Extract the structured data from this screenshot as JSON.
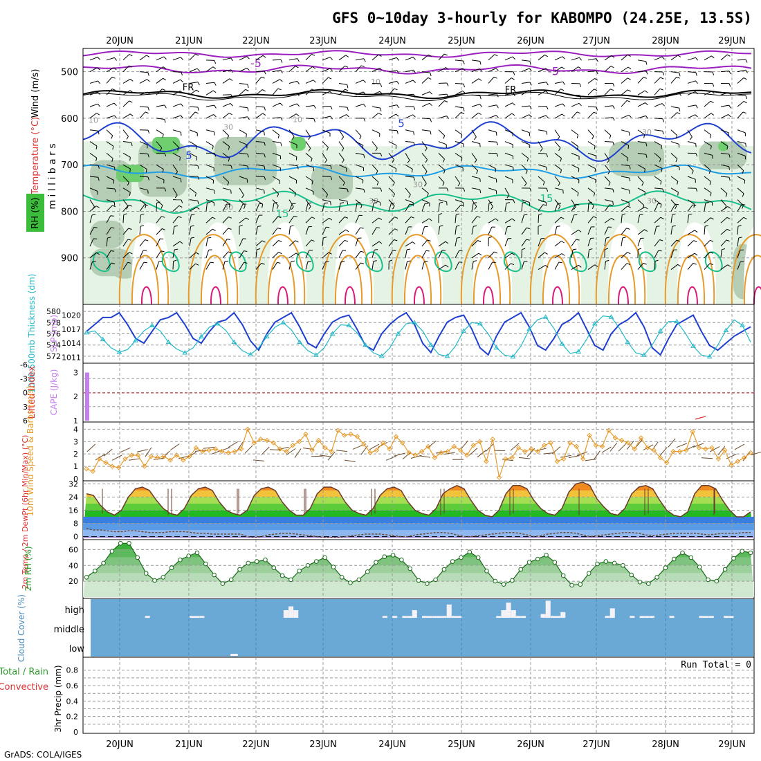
{
  "title": "GFS 0~10day 3-hourly for KABOMPO (24.25E, 13.5S)",
  "footer": "GrADS: COLA/IGES",
  "date_labels": [
    "20JUN",
    "21JUN",
    "22JUN",
    "23JUN",
    "24JUN",
    "25JUN",
    "26JUN",
    "27JUN",
    "28JUN",
    "29JUN"
  ],
  "colors": {
    "temp_purple": "#9b1fc0",
    "temp_black": "#000000",
    "temp_blue": "#1e3fd0",
    "temp_lightblue": "#1e9ee6",
    "temp_green": "#17c08a",
    "temp_orange": "#e69a2a",
    "temp_magenta": "#d8197a",
    "slp": "#1e3fd0",
    "thickness": "#22b8c8",
    "cape": "#c57ef0",
    "wind_speed": "#e69a2a",
    "rh_fill": "#3bbd3b",
    "cloud_bg": "#6aa8d6",
    "cloud_bars": "#f4f2f6"
  },
  "chart_data": [
    {
      "type": "heatmap",
      "panel": "upper-air",
      "ylabel": "m i l l i b a r s",
      "side_labels": {
        "wind": "Wind (m/s)",
        "temperature": "Temperature (°C)",
        "rh": "RH (%)"
      },
      "yticks": [
        500,
        600,
        700,
        800,
        900
      ],
      "ylim": [
        1000,
        450
      ],
      "contour_labels": [
        "-5",
        "-5",
        "FR",
        "FR",
        "10",
        "10",
        "10",
        "30",
        "30",
        "5",
        "5",
        "30",
        "30",
        "30",
        "15",
        "15",
        "30"
      ]
    },
    {
      "type": "line",
      "panel": "slp-thickness",
      "ylabel_left": "1000-500mb Thickness (dm)",
      "ylabel_right": "SLP (mb)",
      "yticks_left": [
        572,
        574,
        576,
        578,
        580
      ],
      "yticks_right": [
        1011,
        1014,
        1017,
        1020
      ],
      "series": [
        {
          "name": "SLP (mb)",
          "values": [
            1016.5,
            1018,
            1019.5,
            1019.5,
            1020.5,
            1018,
            1015,
            1014,
            1016.5,
            1019,
            1019.5,
            1020.5,
            1018,
            1015,
            1014,
            1016.5,
            1018.5,
            1019,
            1020.5,
            1018,
            1014.5,
            1012.5,
            1016,
            1018.5,
            1019.5,
            1020.5,
            1017.5,
            1014,
            1013,
            1016,
            1018.5,
            1019.5,
            1020,
            1017,
            1013.5,
            1012.5,
            1016,
            1018,
            1019.5,
            1020.5,
            1018,
            1014,
            1012,
            1015.5,
            1018.5,
            1019.5,
            1020,
            1017,
            1013,
            1011.5,
            1015.5,
            1018.5,
            1019.5,
            1020.5,
            1017.5,
            1013.5,
            1012.5,
            1015,
            1018,
            1019,
            1020.5,
            1017,
            1013.5,
            1012.5,
            1016,
            1018,
            1019,
            1020.5,
            1017.5,
            1013,
            1011.5,
            1015,
            1018,
            1019,
            1020,
            1016.5,
            1013.5,
            1012.5,
            1014,
            1015.5,
            1016.5,
            1017.5
          ]
        },
        {
          "name": "Thickness (dm)",
          "values": [
            576.2,
            576.5,
            575,
            573.5,
            572.7,
            573.2,
            574.8,
            576.5,
            577.5,
            576.5,
            574.5,
            573.3,
            572.6,
            573.5,
            575.5,
            577.2,
            577.8,
            576.6,
            574.5,
            573,
            572.3,
            573.5,
            575.5,
            577.2,
            578,
            576.7,
            574.5,
            573,
            572.2,
            573.5,
            576,
            577.6,
            577.5,
            576.2,
            574,
            572.6,
            572,
            573.5,
            576,
            577.8,
            578,
            576.5,
            574,
            572.3,
            572,
            573.8,
            576.5,
            578,
            577.8,
            576,
            573.5,
            572.2,
            571.9,
            573.8,
            576.8,
            578.5,
            579,
            577,
            574.2,
            572.5,
            572.8,
            575,
            577.8,
            579.2,
            579,
            577,
            574.5,
            572.6,
            572.2,
            574,
            576.5,
            578.2,
            578.2,
            576.2,
            573.8,
            572.2,
            571.9,
            574,
            576.6,
            578.5,
            577.5,
            574.5
          ]
        }
      ]
    },
    {
      "type": "bar",
      "panel": "cape-lifted-index",
      "ylabel_left": "Lifted Index",
      "ylabel_right": "CAPE (J/kg)",
      "yticks_left": [
        "-6",
        "-3",
        "0",
        "3",
        "6"
      ],
      "yticks_right": [
        "3",
        "2",
        "1"
      ],
      "cape_values": [
        3
      ]
    },
    {
      "type": "line",
      "panel": "10m-wind",
      "ylabel": "10m Wind Speed & Barbs (m/s)",
      "yticks": [
        0,
        1,
        2,
        3,
        4
      ],
      "ylim": [
        0,
        4.3
      ],
      "series": [
        {
          "name": "10m Wind Speed",
          "values": [
            0.8,
            0.6,
            1.6,
            1.3,
            1,
            0.9,
            1.6,
            1.9,
            1.9,
            1,
            1.8,
            1.7,
            1.8,
            1.5,
            1.9,
            1.5,
            1.8,
            2.5,
            2.2,
            2.3,
            2.4,
            2.2,
            2.1,
            2.2,
            2.4,
            4,
            2.9,
            3.2,
            3.1,
            2.9,
            2.4,
            2.2,
            2.7,
            3,
            3.6,
            2.3,
            3.1,
            2.5,
            2.2,
            3.9,
            3.5,
            3.6,
            3.4,
            2.8,
            2.1,
            2.3,
            2.9,
            2.4,
            3.4,
            2.9,
            2.1,
            1.9,
            2.2,
            2.6,
            1.7,
            2.1,
            2.2,
            2.6,
            2.3,
            1.9,
            2.7,
            3,
            1.4,
            3.2,
            0.1,
            1.6,
            1.7,
            2.5,
            2.2,
            2.4,
            2.2,
            2.7,
            2.9,
            1.4,
            1.6,
            2.9,
            2.6,
            1.6,
            3.5,
            2.7,
            2.6,
            3.9,
            3.3,
            3.1,
            2.9,
            2.4,
            3.3,
            2.5,
            2.3,
            1.7,
            1.3,
            2.2,
            2.2,
            2.3,
            3.8,
            2.5,
            2.4,
            2.5,
            1.6,
            2.3,
            1.1,
            1.4,
            1.7,
            2.1
          ]
        }
      ]
    },
    {
      "type": "area",
      "panel": "2m-temp",
      "ylabel": "2m Temp / 2m DewPt (6hr Min/Max) (°C)",
      "yticks": [
        0,
        8,
        16,
        24,
        32
      ],
      "ylim": [
        -1,
        33
      ],
      "series": [
        {
          "name": "2m Temp",
          "values": [
            26,
            25,
            19,
            15,
            13,
            16,
            24,
            29,
            30,
            28,
            22,
            17,
            14,
            13,
            17,
            25,
            29,
            30,
            28,
            21,
            16,
            14,
            13,
            16,
            25,
            29,
            30,
            28,
            21,
            16,
            13,
            13,
            17,
            26,
            30,
            30,
            28,
            21,
            16,
            14,
            13,
            17,
            25,
            29,
            30,
            28,
            21,
            16,
            14,
            13,
            17,
            26,
            29,
            31,
            29,
            22,
            16,
            13,
            12,
            16,
            26,
            31,
            31,
            29,
            22,
            17,
            14,
            13,
            17,
            27,
            32,
            33,
            31,
            23,
            18,
            14,
            13,
            17,
            26,
            30,
            31,
            29,
            22,
            16,
            13,
            12,
            15,
            26,
            31,
            31,
            29,
            22,
            16,
            12,
            12,
            15
          ]
        },
        {
          "name": "2m DewPt",
          "values": [
            5,
            4,
            4,
            3.5,
            3,
            3,
            3.5,
            3.5,
            3,
            2.5,
            2.5,
            2.5,
            3,
            3,
            3,
            2.5,
            2,
            2,
            1.5,
            1.5,
            1.5,
            1.5,
            1.5,
            0,
            -0.5,
            0,
            1,
            1.5,
            2,
            2,
            1.5,
            1,
            0.5,
            0,
            -0.5,
            -0.5,
            -0.5,
            0,
            0.5,
            1,
            1.5,
            1.5,
            1.5,
            1,
            0.5,
            0,
            0,
            1,
            1.5,
            2,
            2.5,
            2.5,
            2,
            1,
            0,
            0,
            0.5,
            1,
            1.5,
            2,
            2.5,
            2.5,
            2,
            1,
            0,
            0.5,
            1.5,
            2,
            2.5,
            2.5,
            2,
            1,
            0,
            0.5,
            1,
            1.5,
            2,
            2.5,
            2.5,
            2,
            1,
            0.5,
            1,
            1.5,
            2,
            2,
            2,
            2,
            1.5,
            1,
            1.5,
            2,
            2,
            2,
            2.5,
            2.5
          ]
        }
      ]
    },
    {
      "type": "area",
      "panel": "2m-rh",
      "ylabel": "2m RH (%)",
      "yticks": [
        20,
        40,
        60
      ],
      "ylim": [
        0,
        70
      ],
      "series": [
        {
          "name": "2m RH",
          "values": [
            25,
            33,
            43,
            58,
            68,
            68,
            50,
            30,
            21,
            25,
            37,
            47,
            52,
            56,
            42,
            28,
            17,
            22,
            35,
            43,
            45,
            47,
            37,
            27,
            22,
            33,
            40,
            45,
            50,
            38,
            25,
            18,
            22,
            32,
            44,
            51,
            53,
            47,
            36,
            21,
            17,
            22,
            35,
            45,
            50,
            57,
            50,
            33,
            20,
            16,
            21,
            35,
            44,
            48,
            53,
            44,
            27,
            15,
            16,
            30,
            42,
            45,
            43,
            40,
            28,
            19,
            17,
            25,
            37,
            48,
            56,
            50,
            38,
            22,
            20,
            35,
            49,
            58,
            56
          ]
        }
      ]
    },
    {
      "type": "bar",
      "panel": "cloud-cover",
      "ylabel": "Cloud Cover (%)",
      "yticks": [
        "high",
        "middle",
        "low"
      ],
      "high_cloud_pct": [
        0,
        0,
        0,
        0,
        0,
        0,
        0,
        0,
        0,
        0,
        0,
        5,
        0,
        0,
        0,
        0,
        0,
        0,
        0,
        0,
        5,
        5,
        5,
        0,
        0,
        0,
        0,
        0,
        0,
        0,
        0,
        0,
        0,
        0,
        0,
        0,
        0,
        0,
        0,
        20,
        30,
        20,
        0,
        0,
        0,
        0,
        0,
        0,
        0,
        0,
        0,
        0,
        0,
        0,
        0,
        0,
        0,
        0,
        0,
        5,
        0,
        5,
        0,
        5,
        5,
        20,
        0,
        5,
        5,
        5,
        5,
        5,
        35,
        5,
        5,
        0,
        0,
        0,
        0,
        0,
        0,
        0,
        5,
        20,
        40,
        20,
        5,
        5,
        0,
        0,
        0,
        10,
        45,
        5,
        5,
        15,
        0,
        0,
        0,
        0,
        0,
        0,
        0,
        0,
        5,
        25,
        0,
        0,
        0,
        5,
        0,
        5,
        5,
        5,
        0,
        0,
        0,
        5,
        0,
        0,
        0,
        0,
        0,
        5,
        5,
        5,
        0,
        0,
        5,
        5,
        0,
        0,
        0,
        0
      ],
      "low_cloud_pct": [
        0,
        0,
        0,
        0,
        0,
        0,
        0,
        0,
        0,
        0,
        0,
        0,
        0,
        0,
        0,
        0,
        0,
        0,
        0,
        10,
        0,
        0,
        0,
        0,
        0,
        0,
        0,
        0,
        0,
        0,
        0,
        0,
        0,
        0,
        0,
        0,
        0,
        0,
        0,
        0,
        0,
        0,
        0,
        0,
        0,
        0,
        0,
        0,
        0,
        0,
        0,
        0,
        0,
        0,
        0,
        0,
        0,
        0,
        0,
        0,
        0,
        0,
        0,
        0,
        0,
        0,
        0,
        0,
        0,
        0,
        0,
        0,
        0,
        0,
        0,
        0,
        0,
        0,
        0,
        0,
        0,
        0,
        0,
        0,
        0,
        0,
        0,
        0,
        0,
        0
      ]
    },
    {
      "type": "bar",
      "panel": "precip",
      "ylabel_left": "Total / Rain",
      "ylabel_left2": "Convective",
      "ylabel": "3hr Precip (mm)",
      "yticks": [
        0,
        0.2,
        0.4,
        0.6,
        0.8
      ],
      "ylim": [
        0,
        0.95
      ],
      "run_total": "Run Total = 0",
      "values": []
    }
  ]
}
